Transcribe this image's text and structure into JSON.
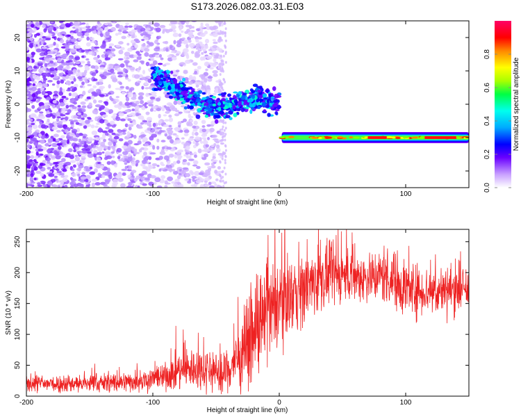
{
  "title": "S173.2026.082.03.31.E03",
  "chart_data": [
    {
      "type": "heatmap",
      "name": "spectrogram",
      "xlabel": "Height of straight line (km)",
      "ylabel": "Frequency (Hz)",
      "xlim": [
        -200,
        150
      ],
      "ylim": [
        -25,
        25
      ],
      "xticks": [
        -200,
        -100,
        0,
        100
      ],
      "xtick_labels": [
        "-200",
        "-100",
        "0",
        "100"
      ],
      "yticks": [
        -20,
        -10,
        0,
        10,
        20
      ],
      "ytick_labels": [
        "-20",
        "-10",
        "0",
        "10",
        "20"
      ],
      "colorbar": {
        "label": "Normalized spectral amplitude",
        "range": [
          0,
          1
        ],
        "ticks": [
          0,
          0.2,
          0.4,
          0.6,
          0.8
        ],
        "tick_labels": [
          "0.0",
          "0.2",
          "0.4",
          "0.6",
          "0.8"
        ]
      },
      "features": [
        {
          "name": "noise-field",
          "x_range": [
            -200,
            -45
          ],
          "freq_range": [
            -25,
            25
          ],
          "amplitude": 0.05
        },
        {
          "name": "wandering-track",
          "x": [
            -100,
            -90,
            -80,
            -70,
            -60,
            -50,
            -40,
            -30,
            -20,
            -15,
            -10,
            -5,
            0
          ],
          "freq": [
            8,
            7,
            4,
            2,
            0,
            -1,
            0,
            0.5,
            1,
            3,
            1,
            0,
            0.5
          ],
          "amplitude": 0.3
        },
        {
          "name": "steady-track",
          "x_range": [
            2,
            150
          ],
          "freq": -10,
          "amplitude": 0.9
        }
      ]
    },
    {
      "type": "line",
      "name": "snr",
      "xlabel": "Height of straight line (km)",
      "ylabel": "SNR (10 * v/v)",
      "xlim": [
        -200,
        150
      ],
      "ylim": [
        0,
        270
      ],
      "xticks": [
        -200,
        -100,
        0,
        100
      ],
      "xtick_labels": [
        "-200",
        "-100",
        "0",
        "100"
      ],
      "yticks": [
        0,
        50,
        100,
        150,
        200,
        250
      ],
      "ytick_labels": [
        "0",
        "50",
        "100",
        "150",
        "200",
        "250"
      ],
      "color": "#ee2222",
      "x": [
        -200,
        -180,
        -160,
        -140,
        -120,
        -100,
        -90,
        -80,
        -70,
        -60,
        -50,
        -45,
        -40,
        -35,
        -30,
        -25,
        -20,
        -15,
        -10,
        -5,
        0,
        10,
        20,
        30,
        40,
        50,
        60,
        70,
        80,
        90,
        100,
        110,
        120,
        130,
        140,
        150
      ],
      "y": [
        20,
        20,
        20,
        21,
        23,
        28,
        32,
        40,
        45,
        44,
        40,
        30,
        45,
        55,
        70,
        85,
        100,
        115,
        128,
        140,
        155,
        165,
        172,
        188,
        193,
        195,
        193,
        193,
        195,
        190,
        175,
        170,
        170,
        172,
        173,
        172
      ],
      "spread": [
        10,
        10,
        10,
        11,
        12,
        14,
        16,
        22,
        24,
        24,
        24,
        22,
        28,
        30,
        40,
        45,
        50,
        55,
        55,
        55,
        50,
        42,
        40,
        38,
        32,
        30,
        30,
        30,
        30,
        34,
        35,
        28,
        28,
        28,
        28,
        28
      ]
    }
  ]
}
